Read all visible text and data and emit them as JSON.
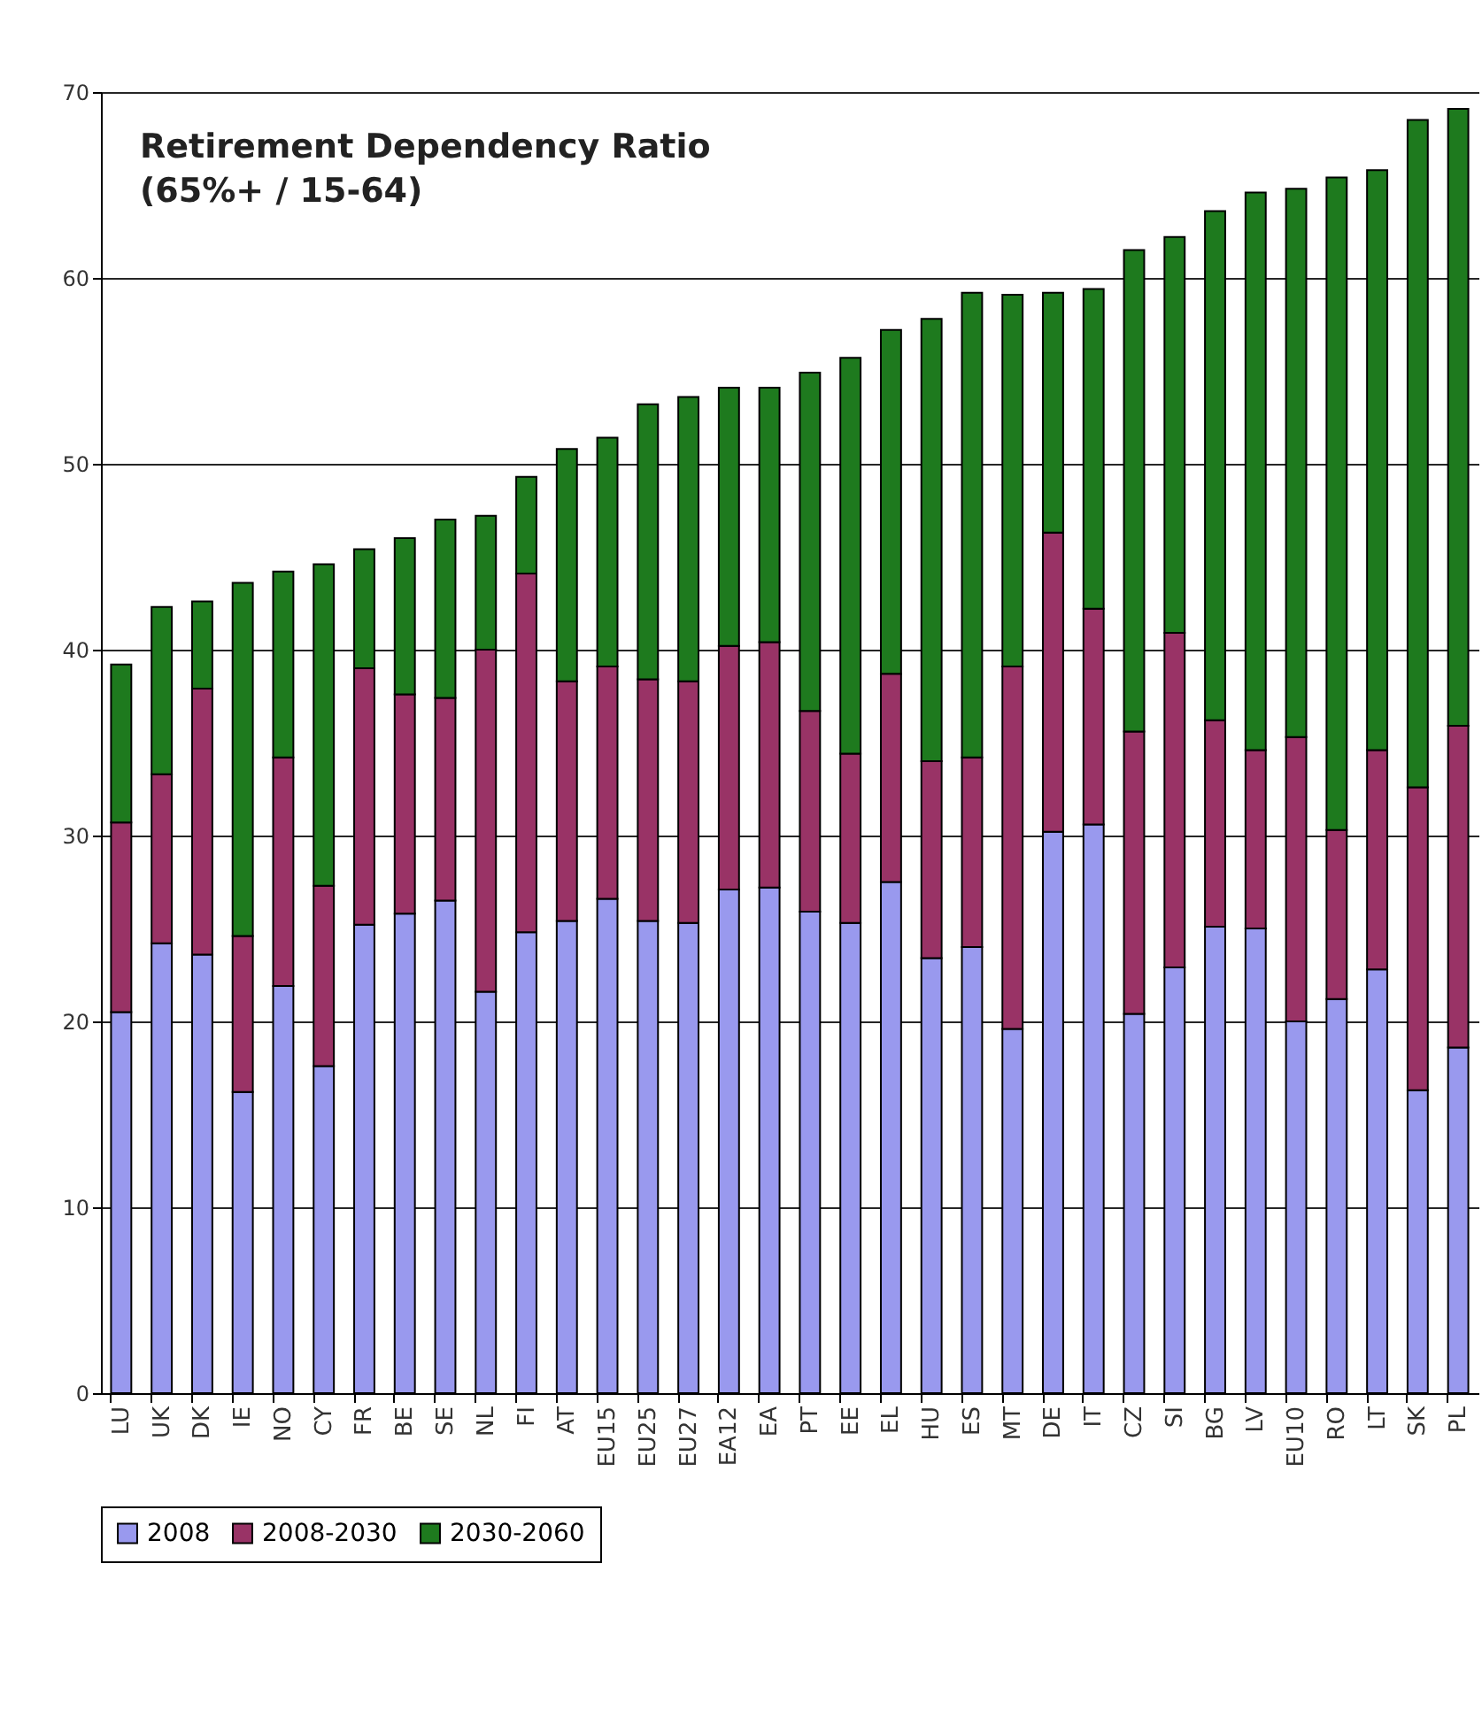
{
  "chart_data": {
    "type": "bar",
    "title": "Retirement Dependency Ratio",
    "subtitle": "(65%+ / 15-64)",
    "stacked": true,
    "grid": "y",
    "legend": "bottom",
    "categories": [
      "LU",
      "UK",
      "DK",
      "IE",
      "NO",
      "CY",
      "FR",
      "BE",
      "SE",
      "NL",
      "FI",
      "AT",
      "EU15",
      "EU25",
      "EU27",
      "EA12",
      "EA",
      "PT",
      "EE",
      "EL",
      "HU",
      "ES",
      "MT",
      "DE",
      "IT",
      "CZ",
      "SI",
      "BG",
      "LV",
      "EU10",
      "RO",
      "LT",
      "SK",
      "PL"
    ],
    "ylim": [
      0,
      70
    ],
    "yticks": [
      0,
      10,
      20,
      30,
      40,
      50,
      60,
      70
    ],
    "series": [
      {
        "name": "2008",
        "color": "#9999ee",
        "values": [
          20.5,
          24.2,
          23.6,
          16.2,
          21.9,
          17.6,
          25.2,
          25.8,
          26.5,
          21.6,
          24.8,
          25.4,
          26.6,
          25.4,
          25.3,
          27.1,
          27.2,
          25.9,
          25.3,
          27.5,
          23.4,
          24.0,
          19.6,
          30.2,
          30.6,
          20.4,
          22.9,
          25.1,
          25.0,
          20.0,
          21.2,
          22.8,
          16.3,
          18.6
        ]
      },
      {
        "name": "2008-2030",
        "color": "#993366",
        "values": [
          10.2,
          9.1,
          14.3,
          8.4,
          12.3,
          9.7,
          13.8,
          11.8,
          10.9,
          18.4,
          19.3,
          12.9,
          12.5,
          13.0,
          13.0,
          13.1,
          13.2,
          10.8,
          9.1,
          11.2,
          10.6,
          10.2,
          19.5,
          16.1,
          11.6,
          15.2,
          18.0,
          11.1,
          9.6,
          15.3,
          9.1,
          11.8,
          16.3,
          17.3
        ]
      },
      {
        "name": "2030-2060",
        "color": "#1e7a1e",
        "values": [
          8.5,
          9.0,
          4.7,
          19.0,
          10.0,
          17.3,
          6.4,
          8.4,
          9.6,
          7.2,
          5.2,
          12.5,
          12.3,
          14.8,
          15.3,
          13.9,
          13.7,
          18.2,
          21.3,
          18.5,
          23.8,
          25.0,
          20.0,
          12.9,
          17.2,
          25.9,
          21.3,
          27.4,
          30.0,
          29.5,
          35.1,
          31.2,
          35.9,
          33.2
        ]
      }
    ]
  }
}
